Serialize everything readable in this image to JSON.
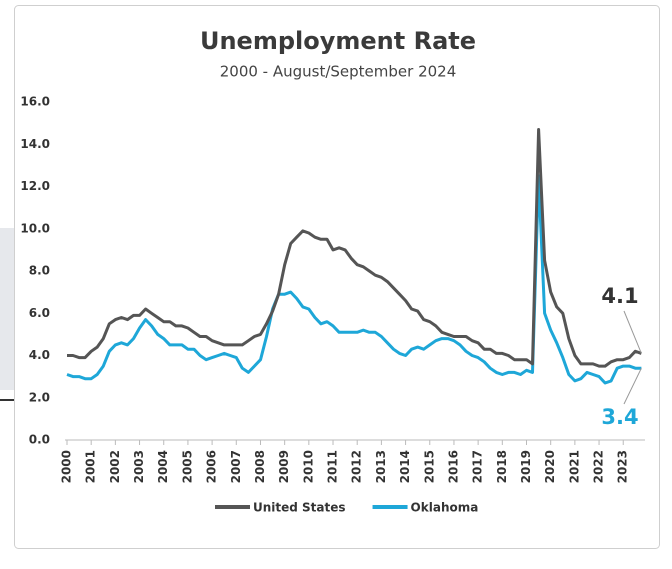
{
  "chart_data": {
    "type": "line",
    "title": "Unemployment Rate",
    "subtitle": "2000 - August/September 2024",
    "x": [
      2000,
      2000.25,
      2000.5,
      2000.75,
      2001,
      2001.25,
      2001.5,
      2001.75,
      2002,
      2002.25,
      2002.5,
      2002.75,
      2003,
      2003.25,
      2003.5,
      2003.75,
      2004,
      2004.25,
      2004.5,
      2004.75,
      2005,
      2005.25,
      2005.5,
      2005.75,
      2006,
      2006.25,
      2006.5,
      2006.75,
      2007,
      2007.25,
      2007.5,
      2007.75,
      2008,
      2008.25,
      2008.5,
      2008.75,
      2009,
      2009.25,
      2009.5,
      2009.75,
      2010,
      2010.25,
      2010.5,
      2010.75,
      2011,
      2011.25,
      2011.5,
      2011.75,
      2012,
      2012.25,
      2012.5,
      2012.75,
      2013,
      2013.25,
      2013.5,
      2013.75,
      2014,
      2014.25,
      2014.5,
      2014.75,
      2015,
      2015.25,
      2015.5,
      2015.75,
      2016,
      2016.25,
      2016.5,
      2016.75,
      2017,
      2017.25,
      2017.5,
      2017.75,
      2018,
      2018.25,
      2018.5,
      2018.75,
      2019,
      2019.25,
      2019.5,
      2019.75,
      2020,
      2020.25,
      2020.5,
      2020.75,
      2021,
      2021.25,
      2021.5,
      2021.75,
      2022,
      2022.25,
      2022.5,
      2022.75,
      2023,
      2023.25,
      2023.5,
      2023.75
    ],
    "series": [
      {
        "name": "United States",
        "color": "#555555",
        "values": [
          4.0,
          4.0,
          3.9,
          3.9,
          4.2,
          4.4,
          4.8,
          5.5,
          5.7,
          5.8,
          5.7,
          5.9,
          5.9,
          6.2,
          6.0,
          5.8,
          5.6,
          5.6,
          5.4,
          5.4,
          5.3,
          5.1,
          4.9,
          4.9,
          4.7,
          4.6,
          4.5,
          4.5,
          4.5,
          4.5,
          4.7,
          4.9,
          5.0,
          5.5,
          6.1,
          6.9,
          8.3,
          9.3,
          9.6,
          9.9,
          9.8,
          9.6,
          9.5,
          9.5,
          9.0,
          9.1,
          9.0,
          8.6,
          8.3,
          8.2,
          8.0,
          7.8,
          7.7,
          7.5,
          7.2,
          6.9,
          6.6,
          6.2,
          6.1,
          5.7,
          5.6,
          5.4,
          5.1,
          5.0,
          4.9,
          4.9,
          4.9,
          4.7,
          4.6,
          4.3,
          4.3,
          4.1,
          4.1,
          4.0,
          3.8,
          3.8,
          3.8,
          3.6,
          14.7,
          8.5,
          7.0,
          6.3,
          6.0,
          4.8,
          4.0,
          3.6,
          3.6,
          3.6,
          3.5,
          3.5,
          3.7,
          3.8,
          3.8,
          3.9,
          4.2,
          4.1
        ]
      },
      {
        "name": "Oklahoma",
        "color": "#1ea7d8",
        "values": [
          3.1,
          3.0,
          3.0,
          2.9,
          2.9,
          3.1,
          3.5,
          4.2,
          4.5,
          4.6,
          4.5,
          4.8,
          5.3,
          5.7,
          5.4,
          5.0,
          4.8,
          4.5,
          4.5,
          4.5,
          4.3,
          4.3,
          4.0,
          3.8,
          3.9,
          4.0,
          4.1,
          4.0,
          3.9,
          3.4,
          3.2,
          3.5,
          3.8,
          4.9,
          6.2,
          6.9,
          6.9,
          7.0,
          6.7,
          6.3,
          6.2,
          5.8,
          5.5,
          5.6,
          5.4,
          5.1,
          5.1,
          5.1,
          5.1,
          5.2,
          5.1,
          5.1,
          4.9,
          4.6,
          4.3,
          4.1,
          4.0,
          4.3,
          4.4,
          4.3,
          4.5,
          4.7,
          4.8,
          4.8,
          4.7,
          4.5,
          4.2,
          4.0,
          3.9,
          3.7,
          3.4,
          3.2,
          3.1,
          3.2,
          3.2,
          3.1,
          3.3,
          3.2,
          12.5,
          6.0,
          5.2,
          4.6,
          3.9,
          3.1,
          2.8,
          2.9,
          3.2,
          3.1,
          3.0,
          2.7,
          2.8,
          3.4,
          3.5,
          3.5,
          3.4,
          3.4
        ]
      }
    ],
    "xlim": [
      2000,
      2023.9
    ],
    "xticks": [
      2000,
      2001,
      2002,
      2003,
      2004,
      2005,
      2006,
      2007,
      2008,
      2009,
      2010,
      2011,
      2012,
      2013,
      2014,
      2015,
      2016,
      2017,
      2018,
      2019,
      2020,
      2021,
      2022,
      2023
    ],
    "ylim": [
      0,
      16
    ],
    "yticks": [
      {
        "value": 0,
        "label": "0.0"
      },
      {
        "value": 2,
        "label": "2.0"
      },
      {
        "value": 4,
        "label": "4.0"
      },
      {
        "value": 6,
        "label": "6.0"
      },
      {
        "value": 8,
        "label": "8.0"
      },
      {
        "value": 10,
        "label": "10.0"
      },
      {
        "value": 12,
        "label": "12.0"
      },
      {
        "value": 14,
        "label": "14.0"
      },
      {
        "value": 16,
        "label": "16.0"
      }
    ],
    "grid": false,
    "legend": "bottom"
  }
}
